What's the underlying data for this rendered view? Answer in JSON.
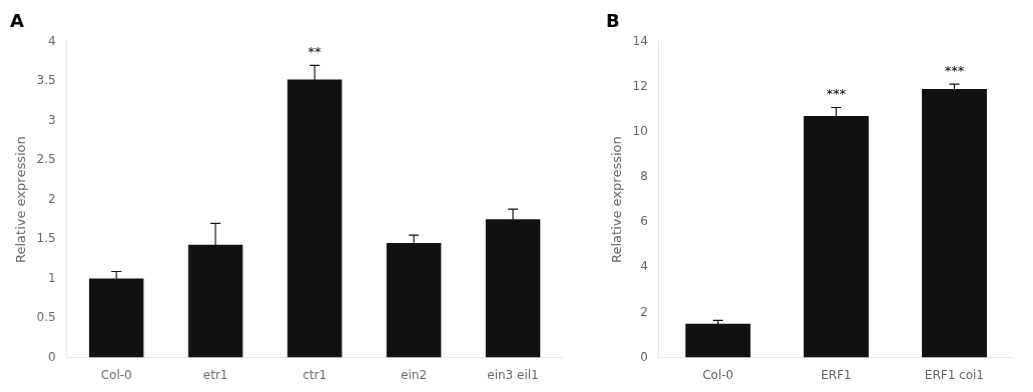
{
  "chart_data": [
    {
      "type": "bar",
      "title": "A",
      "categories": [
        "Col-0",
        "etr1",
        "ctr1",
        "ein2",
        "ein3 eil1"
      ],
      "values": [
        1.0,
        1.43,
        3.52,
        1.45,
        1.75
      ],
      "errors": [
        0.09,
        0.27,
        0.18,
        0.1,
        0.13
      ],
      "significance": [
        null,
        null,
        "**",
        null,
        null
      ],
      "ylabel": "Relative expression",
      "ylim": [
        0,
        4
      ],
      "yticks": [
        0,
        0.5,
        1,
        1.5,
        2,
        2.5,
        3,
        3.5,
        4
      ],
      "color": "#111111",
      "grid": false
    },
    {
      "type": "bar",
      "title": "B",
      "categories": [
        "Col-0",
        "ERF1",
        "ERF1 coi1"
      ],
      "values": [
        1.5,
        10.7,
        11.9
      ],
      "errors": [
        0.15,
        0.38,
        0.22
      ],
      "significance": [
        null,
        "***",
        "***"
      ],
      "ylabel": "Relative expression",
      "ylim": [
        0,
        14
      ],
      "yticks": [
        0,
        2,
        4,
        6,
        8,
        10,
        12,
        14
      ],
      "color": "#111111",
      "grid": false
    }
  ]
}
